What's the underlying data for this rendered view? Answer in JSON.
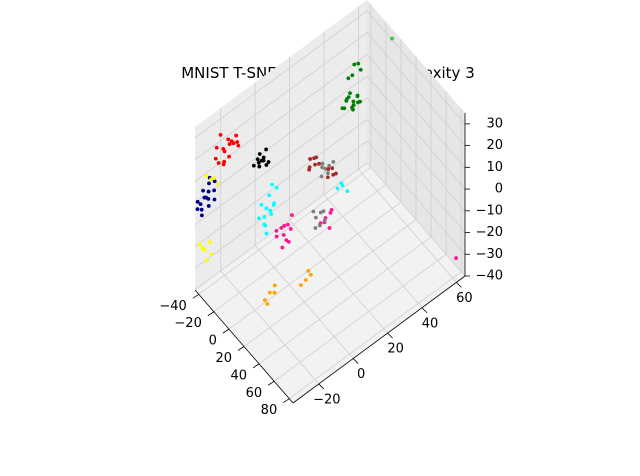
{
  "chart_data": {
    "type": "scatter",
    "projection": "3d",
    "title": "MNIST T-SNE: 1000 points, perplexity 3",
    "xlabel": "",
    "ylabel": "",
    "zlabel": "",
    "xlim": [
      -45,
      85
    ],
    "ylim": [
      -35,
      65
    ],
    "zlim": [
      -40,
      35
    ],
    "x_ticks": [
      -40,
      -20,
      0,
      20,
      40,
      60,
      80
    ],
    "y_ticks": [
      -20,
      0,
      20,
      40,
      60
    ],
    "z_ticks": [
      -40,
      -30,
      -20,
      -10,
      0,
      10,
      20,
      30
    ],
    "grid": true,
    "legend": "none",
    "series": [
      {
        "color": "#ff0000",
        "points": [
          [
            -40,
            -20,
            17
          ],
          [
            -38,
            -18,
            20
          ],
          [
            -42,
            -15,
            18
          ],
          [
            -36,
            -22,
            15
          ],
          [
            -39,
            -25,
            22
          ],
          [
            -44,
            -19,
            16
          ],
          [
            -37,
            -14,
            19
          ],
          [
            -41,
            -23,
            13
          ],
          [
            -35,
            -17,
            21
          ],
          [
            -43,
            -21,
            24
          ],
          [
            -38,
            -26,
            18
          ],
          [
            -40,
            -12,
            15
          ],
          [
            -34,
            -20,
            17
          ],
          [
            -42,
            -17,
            20
          ],
          [
            -39,
            -21,
            12
          ],
          [
            -36,
            -15,
            23
          ]
        ]
      },
      {
        "color": "#008000",
        "points": [
          [
            8,
            30,
            31
          ],
          [
            10,
            33,
            29
          ],
          [
            12,
            28,
            33
          ],
          [
            6,
            32,
            30
          ],
          [
            14,
            31,
            28
          ],
          [
            11,
            35,
            31
          ],
          [
            9,
            27,
            29
          ],
          [
            13,
            34,
            32
          ],
          [
            7,
            29,
            27
          ],
          [
            15,
            30,
            30
          ],
          [
            10,
            31,
            34
          ],
          [
            12,
            36,
            28
          ],
          [
            8,
            34,
            26
          ],
          [
            16,
            33,
            31
          ],
          [
            -14,
            44,
            30
          ],
          [
            -12,
            42,
            27
          ],
          [
            -10,
            46,
            28
          ],
          [
            -15,
            41,
            25
          ],
          [
            -11,
            45,
            31
          ]
        ]
      },
      {
        "color": "#00008b",
        "points": [
          [
            -46,
            -28,
            -2
          ],
          [
            -44,
            -30,
            0
          ],
          [
            -47,
            -26,
            3
          ],
          [
            -43,
            -32,
            -4
          ],
          [
            -45,
            -27,
            -6
          ],
          [
            -48,
            -29,
            1
          ],
          [
            -42,
            -25,
            -3
          ],
          [
            -46,
            -33,
            -1
          ],
          [
            -44,
            -24,
            4
          ],
          [
            -49,
            -30,
            -5
          ],
          [
            -43,
            -28,
            2
          ],
          [
            -45,
            -31,
            -8
          ],
          [
            -47,
            -23,
            -2
          ],
          [
            -41,
            -29,
            0
          ],
          [
            -46,
            -26,
            6
          ],
          [
            -44,
            -34,
            -3
          ]
        ]
      },
      {
        "color": "#ffff00",
        "points": [
          [
            -35,
            -30,
            12
          ],
          [
            -33,
            -27,
            9
          ],
          [
            -37,
            -32,
            14
          ],
          [
            -30,
            -36,
            -15
          ],
          [
            -28,
            -33,
            -18
          ],
          [
            -32,
            -38,
            -12
          ],
          [
            -29,
            -35,
            -20
          ],
          [
            -34,
            -31,
            -16
          ],
          [
            -31,
            -37,
            -14
          ],
          [
            -36,
            -28,
            11
          ]
        ]
      },
      {
        "color": "#000000",
        "points": [
          [
            -25,
            -5,
            10
          ],
          [
            -22,
            -8,
            12
          ],
          [
            -27,
            -3,
            8
          ],
          [
            -20,
            -6,
            14
          ],
          [
            -24,
            -10,
            11
          ],
          [
            -26,
            -2,
            13
          ],
          [
            -21,
            -4,
            9
          ],
          [
            -23,
            -7,
            15
          ],
          [
            -28,
            -6,
            10
          ],
          [
            -19,
            -9,
            12
          ],
          [
            -25,
            -1,
            7
          ]
        ]
      },
      {
        "color": "#808080",
        "points": [
          [
            10,
            15,
            11
          ],
          [
            12,
            18,
            9
          ],
          [
            14,
            13,
            12
          ],
          [
            9,
            17,
            7
          ],
          [
            13,
            20,
            10
          ],
          [
            11,
            14,
            6
          ],
          [
            15,
            16,
            8
          ],
          [
            40,
            -2,
            8
          ],
          [
            42,
            0,
            10
          ],
          [
            44,
            -4,
            6
          ],
          [
            41,
            2,
            9
          ],
          [
            43,
            -1,
            5
          ],
          [
            45,
            1,
            7
          ],
          [
            39,
            -3,
            11
          ]
        ]
      },
      {
        "color": "#a52a2a",
        "points": [
          [
            5,
            10,
            14
          ],
          [
            7,
            12,
            11
          ],
          [
            9,
            8,
            13
          ],
          [
            4,
            14,
            12
          ],
          [
            8,
            11,
            15
          ],
          [
            6,
            9,
            10
          ],
          [
            10,
            13,
            12
          ],
          [
            20,
            14,
            13
          ],
          [
            22,
            16,
            10
          ],
          [
            24,
            12,
            12
          ],
          [
            21,
            18,
            9
          ],
          [
            23,
            15,
            14
          ]
        ]
      },
      {
        "color": "#00ffff",
        "points": [
          [
            -15,
            -5,
            -2
          ],
          [
            -12,
            -8,
            -5
          ],
          [
            -18,
            -2,
            0
          ],
          [
            -10,
            -6,
            -8
          ],
          [
            -14,
            -10,
            -3
          ],
          [
            -16,
            -4,
            -10
          ],
          [
            -11,
            -9,
            -12
          ],
          [
            -13,
            -3,
            -6
          ],
          [
            -17,
            -7,
            -15
          ],
          [
            -9,
            -5,
            -4
          ],
          [
            -15,
            -11,
            -9
          ],
          [
            -12,
            -2,
            1
          ],
          [
            -14,
            -7,
            -18
          ],
          [
            -10,
            -10,
            -7
          ],
          [
            25,
            20,
            4
          ],
          [
            27,
            22,
            1
          ],
          [
            23,
            18,
            3
          ],
          [
            26,
            19,
            6
          ]
        ]
      },
      {
        "color": "#ff1493",
        "points": [
          [
            5,
            -5,
            -8
          ],
          [
            8,
            -8,
            -6
          ],
          [
            3,
            -2,
            -10
          ],
          [
            10,
            -6,
            -12
          ],
          [
            6,
            -10,
            -7
          ],
          [
            2,
            -4,
            -14
          ],
          [
            9,
            -3,
            -9
          ],
          [
            7,
            -7,
            -16
          ],
          [
            4,
            -9,
            -11
          ],
          [
            11,
            -5,
            -13
          ],
          [
            6,
            -1,
            -5
          ],
          [
            30,
            8,
            -2
          ],
          [
            32,
            10,
            0
          ],
          [
            28,
            6,
            -4
          ],
          [
            33,
            9,
            -6
          ],
          [
            29,
            12,
            -1
          ],
          [
            31,
            7,
            -3
          ],
          [
            80,
            62,
            -32
          ]
        ]
      },
      {
        "color": "#ffa500",
        "points": [
          [
            20,
            -20,
            -24
          ],
          [
            22,
            -18,
            -21
          ],
          [
            18,
            -22,
            -27
          ],
          [
            24,
            -19,
            -23
          ],
          [
            19,
            -21,
            -29
          ],
          [
            45,
            -10,
            -14
          ],
          [
            47,
            -8,
            -12
          ],
          [
            43,
            -12,
            -16
          ],
          [
            46,
            -9,
            -10
          ]
        ]
      },
      {
        "color": "#32cd32",
        "points": [
          [
            -5,
            62,
            35
          ]
        ]
      }
    ]
  }
}
